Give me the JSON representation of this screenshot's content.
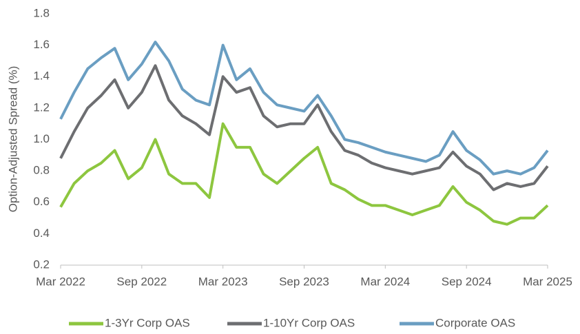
{
  "chart_data": {
    "type": "line",
    "y_label": "Option-Adjusted Spread (%)",
    "x": [
      "2022-03",
      "2022-04",
      "2022-05",
      "2022-06",
      "2022-07",
      "2022-08",
      "2022-09",
      "2022-10",
      "2022-11",
      "2022-12",
      "2023-01",
      "2023-02",
      "2023-03",
      "2023-04",
      "2023-05",
      "2023-06",
      "2023-07",
      "2023-08",
      "2023-09",
      "2023-10",
      "2023-11",
      "2023-12",
      "2024-01",
      "2024-02",
      "2024-03",
      "2024-04",
      "2024-05",
      "2024-06",
      "2024-07",
      "2024-08",
      "2024-09",
      "2024-10",
      "2024-11",
      "2024-12",
      "2025-01",
      "2025-02",
      "2025-03"
    ],
    "series": [
      {
        "name": "1-3Yr Corp OAS",
        "color": "#8dc63f",
        "values": [
          0.57,
          0.72,
          0.8,
          0.85,
          0.93,
          0.75,
          0.82,
          1.0,
          0.78,
          0.72,
          0.72,
          0.63,
          1.1,
          0.95,
          0.95,
          0.78,
          0.72,
          0.8,
          0.88,
          0.95,
          0.72,
          0.68,
          0.62,
          0.58,
          0.58,
          0.55,
          0.52,
          0.55,
          0.58,
          0.7,
          0.6,
          0.55,
          0.48,
          0.46,
          0.5,
          0.5,
          0.58
        ]
      },
      {
        "name": "1-10Yr Corp OAS",
        "color": "#6d6e71",
        "values": [
          0.88,
          1.05,
          1.2,
          1.28,
          1.38,
          1.2,
          1.3,
          1.47,
          1.25,
          1.15,
          1.1,
          1.03,
          1.4,
          1.3,
          1.33,
          1.15,
          1.08,
          1.1,
          1.1,
          1.22,
          1.05,
          0.93,
          0.9,
          0.85,
          0.82,
          0.8,
          0.78,
          0.8,
          0.82,
          0.92,
          0.83,
          0.78,
          0.68,
          0.72,
          0.7,
          0.72,
          0.83
        ]
      },
      {
        "name": "Corporate OAS",
        "color": "#6a9ec2",
        "values": [
          1.13,
          1.3,
          1.45,
          1.52,
          1.58,
          1.38,
          1.48,
          1.62,
          1.5,
          1.32,
          1.25,
          1.22,
          1.6,
          1.38,
          1.45,
          1.3,
          1.22,
          1.2,
          1.18,
          1.28,
          1.15,
          1.0,
          0.98,
          0.95,
          0.92,
          0.9,
          0.88,
          0.86,
          0.9,
          1.05,
          0.93,
          0.87,
          0.78,
          0.8,
          0.78,
          0.82,
          0.93
        ]
      }
    ],
    "xlim": [
      "2022-03",
      "2025-03"
    ],
    "xticks": [
      {
        "value": "2022-03",
        "label": "Mar 2022"
      },
      {
        "value": "2022-09",
        "label": "Sep 2022"
      },
      {
        "value": "2023-03",
        "label": "Mar 2023"
      },
      {
        "value": "2023-09",
        "label": "Sep 2023"
      },
      {
        "value": "2024-03",
        "label": "Mar 2024"
      },
      {
        "value": "2024-09",
        "label": "Sep 2024"
      },
      {
        "value": "2025-03",
        "label": "Mar 2025"
      }
    ],
    "ylim": [
      0.2,
      1.8
    ],
    "yticks": [
      0.2,
      0.4,
      0.6,
      0.8,
      {
        "value": 1.0,
        "label": "1.0"
      },
      1.2,
      1.4,
      1.6,
      1.8
    ],
    "legend": "bottom"
  }
}
